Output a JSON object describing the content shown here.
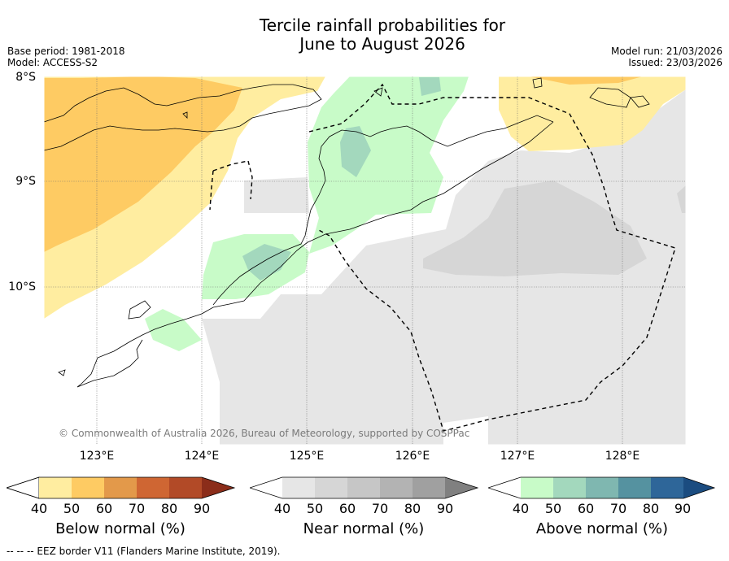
{
  "title_line1": "Tercile rainfall probabilities for",
  "title_line2": "June to August 2026",
  "meta": {
    "base_period": "Base period: 1981-2018",
    "model": "Model: ACCESS-S2",
    "model_run": "Model run: 21/03/2026",
    "issued": "Issued: 23/03/2026"
  },
  "axes": {
    "lat_labels": [
      "8°S",
      "9°S",
      "10°S"
    ],
    "lon_labels": [
      "123°E",
      "124°E",
      "125°E",
      "126°E",
      "127°E",
      "128°E"
    ]
  },
  "copyright": "© Commonwealth of Australia 2026, Bureau of Meteorology, supported by COSPPac",
  "legends": {
    "below": {
      "title": "Below normal (%)",
      "ticks": [
        "40",
        "50",
        "60",
        "70",
        "80",
        "90"
      ],
      "colors": [
        "#ffffff",
        "#ffeda0",
        "#fecb63",
        "#e3994a",
        "#cf6633",
        "#b24a27",
        "#8b2d1a"
      ]
    },
    "near": {
      "title": "Near normal (%)",
      "ticks": [
        "40",
        "50",
        "60",
        "70",
        "80",
        "90"
      ],
      "colors": [
        "#ffffff",
        "#e6e6e6",
        "#d6d6d6",
        "#c6c6c6",
        "#b3b3b3",
        "#a0a0a0",
        "#808080"
      ]
    },
    "above": {
      "title": "Above normal (%)",
      "ticks": [
        "40",
        "50",
        "60",
        "70",
        "80",
        "90"
      ],
      "colors": [
        "#ffffff",
        "#c8fbc8",
        "#a3d8bd",
        "#7fb7b0",
        "#5592a0",
        "#2e6699",
        "#1b4c80"
      ]
    }
  },
  "footer": "--  --  -- EEZ border V11 (Flanders Marine Institute, 2019).",
  "colors": {
    "below_50": "#ffeda0",
    "below_60": "#fecb63",
    "near_50": "#e6e6e6",
    "near_60": "#d6d6d6",
    "above_50": "#c8fbc8",
    "above_60": "#a3d8bd"
  }
}
